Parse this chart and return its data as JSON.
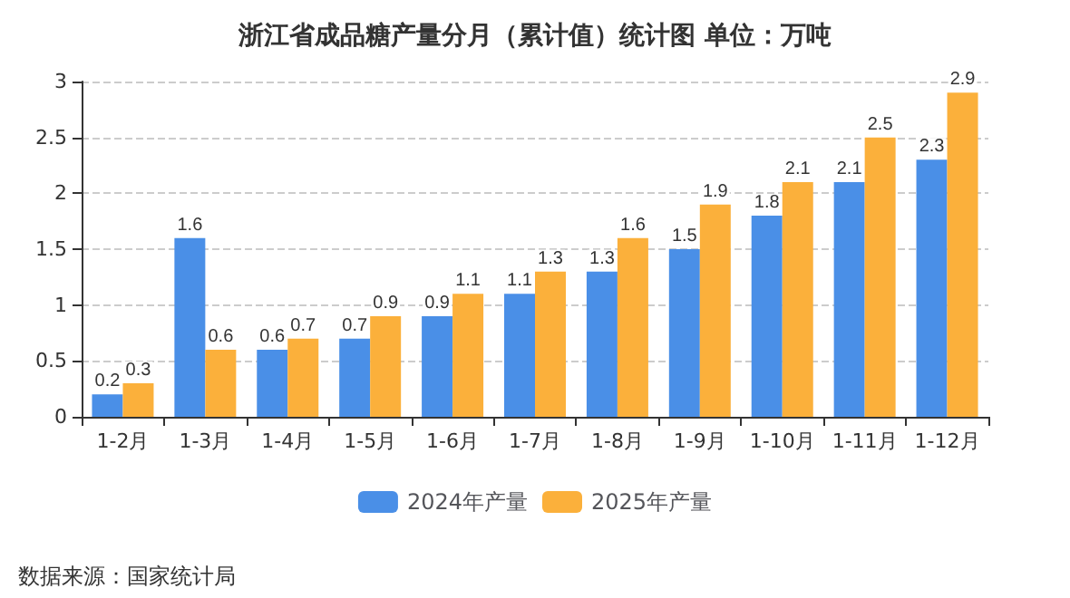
{
  "chart_data": {
    "type": "bar",
    "title": "浙江省成品糖产量分月（累计值）统计图 单位：万吨",
    "categories": [
      "1-2月",
      "1-3月",
      "1-4月",
      "1-5月",
      "1-6月",
      "1-7月",
      "1-8月",
      "1-9月",
      "1-10月",
      "1-11月",
      "1-12月"
    ],
    "series": [
      {
        "name": "2024年产量",
        "color": "#4a8fe7",
        "values": [
          0.2,
          1.6,
          0.6,
          0.7,
          0.9,
          1.1,
          1.3,
          1.5,
          1.8,
          2.1,
          2.3
        ]
      },
      {
        "name": "2025年产量",
        "color": "#fbb03b",
        "values": [
          0.3,
          0.6,
          0.7,
          0.9,
          1.1,
          1.3,
          1.6,
          1.9,
          2.1,
          2.5,
          2.9
        ]
      }
    ],
    "ylim": [
      0,
      3
    ],
    "yticks": [
      0,
      0.5,
      1,
      1.5,
      2,
      2.5,
      3
    ],
    "grid": "y",
    "legend": "bottom",
    "data_labels": true,
    "annotations": [
      "数据来源：国家统计局"
    ]
  }
}
